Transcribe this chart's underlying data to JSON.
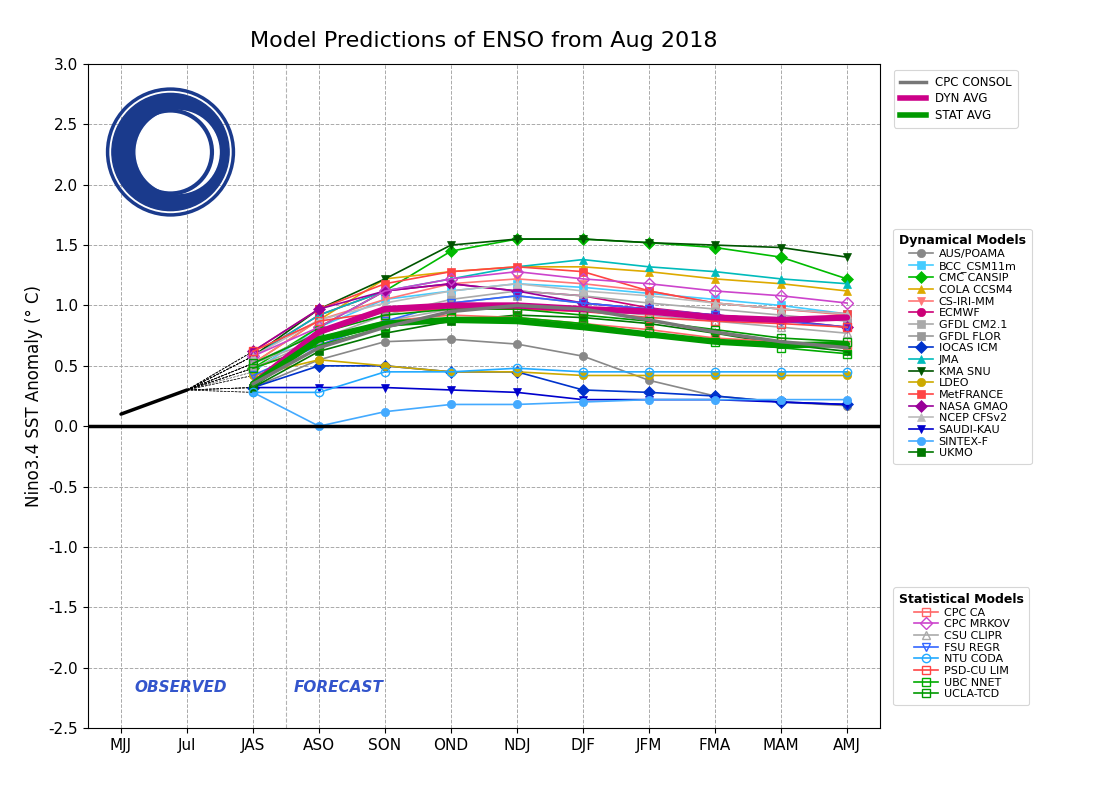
{
  "title": "Model Predictions of ENSO from Aug 2018",
  "ylabel": "Nino3.4 SST Anomaly (° C)",
  "xtick_labels": [
    "MJJ",
    "Jul",
    "JAS",
    "ASO",
    "SON",
    "OND",
    "NDJ",
    "DJF",
    "JFM",
    "FMA",
    "MAM",
    "AMJ"
  ],
  "ylim": [
    -2.5,
    3.0
  ],
  "yticks": [
    -2.5,
    -2.0,
    -1.5,
    -1.0,
    -0.5,
    0.0,
    0.5,
    1.0,
    1.5,
    2.0,
    2.5,
    3.0
  ],
  "observed_label": "OBSERVED",
  "forecast_label": "FORECAST",
  "observed_data": {
    "x": [
      0,
      1
    ],
    "y": [
      0.1,
      0.3
    ]
  },
  "dyn_avg": {
    "x": [
      2,
      3,
      4,
      5,
      6,
      7,
      8,
      9,
      10,
      11
    ],
    "y": [
      0.35,
      0.78,
      0.97,
      1.0,
      1.0,
      0.97,
      0.95,
      0.9,
      0.88,
      0.9
    ],
    "color": "#cc0088",
    "linewidth": 4.5
  },
  "stat_avg": {
    "x": [
      2,
      3,
      4,
      5,
      6,
      7,
      8,
      9,
      10,
      11
    ],
    "y": [
      0.35,
      0.72,
      0.85,
      0.88,
      0.87,
      0.82,
      0.76,
      0.7,
      0.67,
      0.68
    ],
    "color": "#009900",
    "linewidth": 4.5
  },
  "cpc_consol": {
    "x": [
      2,
      3,
      4,
      5,
      6,
      7,
      8,
      9,
      10,
      11
    ],
    "y": [
      0.35,
      0.65,
      0.82,
      0.95,
      1.0,
      0.97,
      0.88,
      0.78,
      0.7,
      0.65
    ],
    "color": "#777777",
    "linewidth": 2.5
  },
  "dynamical_models": {
    "AUS/POAMA": {
      "color": "#888888",
      "marker": "o",
      "x": [
        2,
        3,
        4,
        5,
        6,
        7,
        8,
        9,
        10,
        11
      ],
      "y": [
        0.32,
        0.55,
        0.7,
        0.72,
        0.68,
        0.58,
        0.38,
        0.25,
        0.2,
        0.17
      ]
    },
    "BCC_CSM11m": {
      "color": "#44ccff",
      "marker": "s",
      "x": [
        2,
        3,
        4,
        5,
        6,
        7,
        8,
        9,
        10,
        11
      ],
      "y": [
        0.45,
        0.82,
        1.05,
        1.12,
        1.18,
        1.15,
        1.1,
        1.05,
        1.0,
        0.93
      ]
    },
    "CMC CANSIP": {
      "color": "#00bb00",
      "marker": "D",
      "x": [
        2,
        3,
        4,
        5,
        6,
        7,
        8,
        9,
        10,
        11
      ],
      "y": [
        0.48,
        0.82,
        1.12,
        1.45,
        1.55,
        1.55,
        1.52,
        1.48,
        1.4,
        1.22
      ]
    },
    "COLA CCSM4": {
      "color": "#ddaa00",
      "marker": "^",
      "x": [
        2,
        3,
        4,
        5,
        6,
        7,
        8,
        9,
        10,
        11
      ],
      "y": [
        0.52,
        0.88,
        1.22,
        1.28,
        1.32,
        1.32,
        1.28,
        1.22,
        1.18,
        1.12
      ]
    },
    "CS-IRI-MM": {
      "color": "#ff7777",
      "marker": "v",
      "x": [
        2,
        3,
        4,
        5,
        6,
        7,
        8,
        9,
        10,
        11
      ],
      "y": [
        0.52,
        0.88,
        1.05,
        1.18,
        1.22,
        1.18,
        1.12,
        1.02,
        0.97,
        0.92
      ]
    },
    "ECMWF": {
      "color": "#cc0077",
      "marker": "o",
      "x": [
        2,
        3,
        4,
        5,
        6,
        7,
        8,
        9,
        10,
        11
      ],
      "y": [
        0.58,
        0.92,
        1.12,
        1.18,
        1.12,
        1.08,
        0.98,
        0.92,
        0.88,
        0.88
      ]
    },
    "GFDL CM2.1": {
      "color": "#aaaaaa",
      "marker": "s",
      "x": [
        2,
        3,
        4,
        5,
        6,
        7,
        8,
        9,
        10,
        11
      ],
      "y": [
        0.48,
        0.72,
        0.92,
        1.05,
        1.12,
        1.08,
        1.02,
        0.97,
        0.92,
        0.87
      ]
    },
    "GFDL FLOR": {
      "color": "#999999",
      "marker": "s",
      "x": [
        2,
        3,
        4,
        5,
        6,
        7,
        8,
        9,
        10,
        11
      ],
      "y": [
        0.52,
        0.78,
        0.95,
        1.02,
        1.08,
        1.02,
        0.97,
        0.92,
        0.88,
        0.82
      ]
    },
    "IOCAS ICM": {
      "color": "#0033cc",
      "marker": "D",
      "x": [
        2,
        3,
        4,
        5,
        6,
        7,
        8,
        9,
        10,
        11
      ],
      "y": [
        0.32,
        0.5,
        0.5,
        0.45,
        0.45,
        0.3,
        0.28,
        0.25,
        0.2,
        0.18
      ]
    },
    "JMA": {
      "color": "#00bbbb",
      "marker": "^",
      "x": [
        2,
        3,
        4,
        5,
        6,
        7,
        8,
        9,
        10,
        11
      ],
      "y": [
        0.58,
        0.92,
        1.12,
        1.22,
        1.32,
        1.38,
        1.32,
        1.28,
        1.22,
        1.18
      ]
    },
    "KMA SNU": {
      "color": "#005500",
      "marker": "v",
      "x": [
        2,
        3,
        4,
        5,
        6,
        7,
        8,
        9,
        10,
        11
      ],
      "y": [
        0.58,
        0.97,
        1.22,
        1.5,
        1.55,
        1.55,
        1.52,
        1.5,
        1.48,
        1.4
      ]
    },
    "LDEO": {
      "color": "#ccaa00",
      "marker": "o",
      "x": [
        2,
        3,
        4,
        5,
        6,
        7,
        8,
        9,
        10,
        11
      ],
      "y": [
        0.42,
        0.55,
        0.5,
        0.45,
        0.45,
        0.42,
        0.42,
        0.42,
        0.42,
        0.42
      ]
    },
    "MetFRANCE": {
      "color": "#ff4444",
      "marker": "s",
      "x": [
        2,
        3,
        4,
        5,
        6,
        7,
        8,
        9,
        10,
        11
      ],
      "y": [
        0.62,
        0.97,
        1.18,
        1.28,
        1.32,
        1.28,
        1.12,
        1.02,
        0.97,
        0.93
      ]
    },
    "NASA GMAO": {
      "color": "#990099",
      "marker": "D",
      "x": [
        2,
        3,
        4,
        5,
        6,
        7,
        8,
        9,
        10,
        11
      ],
      "y": [
        0.62,
        0.97,
        1.12,
        1.18,
        1.12,
        1.02,
        0.97,
        0.92,
        0.88,
        0.82
      ]
    },
    "NCEP CFSv2": {
      "color": "#bbbbbb",
      "marker": "^",
      "x": [
        2,
        3,
        4,
        5,
        6,
        7,
        8,
        9,
        10,
        11
      ],
      "y": [
        0.58,
        0.88,
        1.02,
        1.12,
        1.18,
        1.12,
        1.08,
        1.02,
        0.97,
        0.93
      ]
    },
    "SAUDI-KAU": {
      "color": "#0000cc",
      "marker": "v",
      "x": [
        2,
        3,
        4,
        5,
        6,
        7,
        8,
        9,
        10,
        11
      ],
      "y": [
        0.32,
        0.32,
        0.32,
        0.3,
        0.28,
        0.22,
        0.22,
        0.22,
        0.2,
        0.18
      ]
    },
    "SINTEX-F": {
      "color": "#44aaff",
      "marker": "o",
      "x": [
        2,
        3,
        4,
        5,
        6,
        7,
        8,
        9,
        10,
        11
      ],
      "y": [
        0.28,
        0.0,
        0.12,
        0.18,
        0.18,
        0.2,
        0.22,
        0.22,
        0.22,
        0.22
      ]
    },
    "UKMO": {
      "color": "#007700",
      "marker": "s",
      "x": [
        2,
        3,
        4,
        5,
        6,
        7,
        8,
        9,
        10,
        11
      ],
      "y": [
        0.32,
        0.62,
        0.77,
        0.87,
        0.92,
        0.9,
        0.85,
        0.77,
        0.68,
        0.62
      ]
    }
  },
  "statistical_models": {
    "CPC CA": {
      "color": "#ff6666",
      "marker": "s",
      "x": [
        2,
        3,
        4,
        5,
        6,
        7,
        8,
        9,
        10,
        11
      ],
      "y": [
        0.48,
        0.67,
        0.87,
        0.92,
        0.9,
        0.85,
        0.8,
        0.73,
        0.7,
        0.67
      ]
    },
    "CPC MRKOV": {
      "color": "#cc44cc",
      "marker": "D",
      "x": [
        2,
        3,
        4,
        5,
        6,
        7,
        8,
        9,
        10,
        11
      ],
      "y": [
        0.58,
        0.82,
        1.12,
        1.22,
        1.28,
        1.22,
        1.18,
        1.12,
        1.08,
        1.02
      ]
    },
    "CSU CLIPR": {
      "color": "#aaaaaa",
      "marker": "^",
      "x": [
        2,
        3,
        4,
        5,
        6,
        7,
        8,
        9,
        10,
        11
      ],
      "y": [
        0.52,
        0.72,
        0.87,
        0.97,
        1.0,
        0.97,
        0.92,
        0.87,
        0.82,
        0.77
      ]
    },
    "FSU REGR": {
      "color": "#3366ff",
      "marker": "v",
      "x": [
        2,
        3,
        4,
        5,
        6,
        7,
        8,
        9,
        10,
        11
      ],
      "y": [
        0.42,
        0.67,
        0.87,
        1.02,
        1.08,
        1.02,
        0.97,
        0.92,
        0.87,
        0.82
      ]
    },
    "NTU CODA": {
      "color": "#22aaff",
      "marker": "o",
      "x": [
        2,
        3,
        4,
        5,
        6,
        7,
        8,
        9,
        10,
        11
      ],
      "y": [
        0.28,
        0.28,
        0.45,
        0.45,
        0.48,
        0.45,
        0.45,
        0.45,
        0.45,
        0.45
      ]
    },
    "PSD-CU LIM": {
      "color": "#ff4444",
      "marker": "s",
      "x": [
        2,
        3,
        4,
        5,
        6,
        7,
        8,
        9,
        10,
        11
      ],
      "y": [
        0.62,
        0.87,
        0.95,
        0.97,
        0.97,
        0.95,
        0.9,
        0.87,
        0.85,
        0.82
      ]
    },
    "UBC NNET": {
      "color": "#00aa00",
      "marker": "s",
      "x": [
        2,
        3,
        4,
        5,
        6,
        7,
        8,
        9,
        10,
        11
      ],
      "y": [
        0.48,
        0.67,
        0.82,
        0.9,
        0.9,
        0.85,
        0.77,
        0.7,
        0.65,
        0.6
      ]
    },
    "UCLA-TCD": {
      "color": "#009900",
      "marker": "s",
      "x": [
        2,
        3,
        4,
        5,
        6,
        7,
        8,
        9,
        10,
        11
      ],
      "y": [
        0.52,
        0.77,
        0.92,
        0.97,
        0.97,
        0.92,
        0.87,
        0.8,
        0.73,
        0.7
      ]
    }
  },
  "background_color": "#ffffff",
  "grid_color": "#aaaaaa",
  "iri_color": "#1a3a8c"
}
